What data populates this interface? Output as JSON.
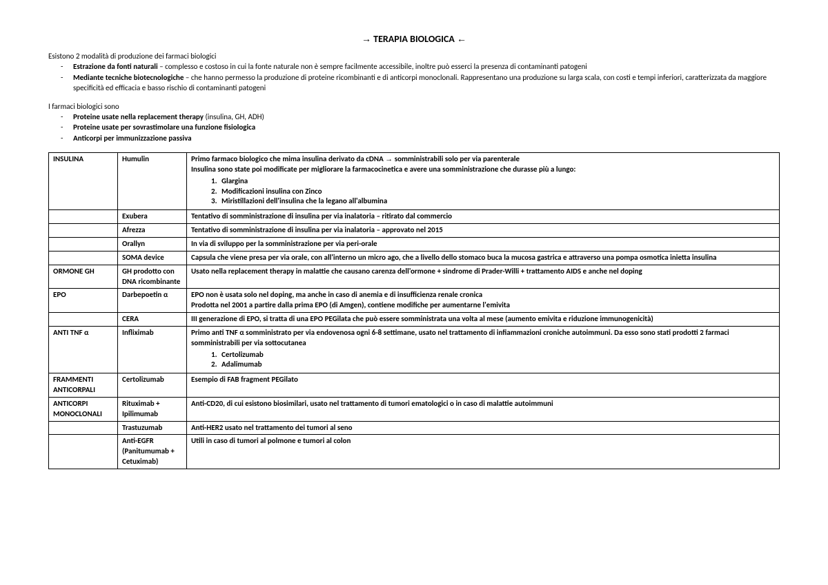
{
  "title": "TERAPIA BIOLOGICA",
  "intro1": "Esistono 2 modalità di produzione dei farmaci biologici",
  "bullets1": [
    {
      "bold": "Estrazione da fonti naturali",
      "rest": " – complesso e costoso in cui la fonte naturale non è sempre facilmente accessibile, inoltre può esserci la presenza di contaminanti patogeni"
    },
    {
      "bold": "Mediante tecniche biotecnologiche",
      "rest": " – che hanno permesso la produzione di proteine ricombinanti e di anticorpi monoclonali. Rappresentano una produzione su larga scala, con costi e tempi inferiori, caratterizzata da maggiore specificità ed efficacia e basso rischio di contaminanti patogeni"
    }
  ],
  "intro2": "I farmaci biologici sono",
  "bullets2": [
    {
      "bold": "Proteine usate nella replacement therapy",
      "rest": " (insulina, GH, ADH)"
    },
    {
      "bold": "Proteine usate per sovrastimolare una funzione fisiologica",
      "rest": ""
    },
    {
      "bold": "Anticorpi per immunizzazione passiva",
      "rest": ""
    }
  ],
  "rows": [
    {
      "cat": "INSULINA",
      "name": "Humulin",
      "desc_pre": "Primo farmaco biologico che mima insulina derivato da cDNA ",
      "desc_post": " somministrabili solo per via parenterale",
      "line2": "Insulina sono state poi modificate per migliorare la farmacocinetica e avere una somministrazione che durasse più a lungo:",
      "list": [
        "Glargina",
        "Modificazioni insulina con Zinco",
        "Miristillazioni dell'insulina che la legano all'albumina"
      ]
    },
    {
      "cat": "",
      "name": "Exubera",
      "desc": "Tentativo di somministrazione di insulina per via inalatoria – ritirato dal commercio"
    },
    {
      "cat": "",
      "name": "Afrezza",
      "desc": "Tentativo di somministrazione di insulina per via inalatoria – approvato nel 2015"
    },
    {
      "cat": "",
      "name": "Orallyn",
      "desc": "In via di sviluppo per la somministrazione per via peri-orale"
    },
    {
      "cat": "",
      "name": "SOMA device",
      "desc": "Capsula che viene presa per via orale, con all'interno un micro ago, che a livello dello stomaco buca la mucosa gastrica e attraverso una pompa osmotica inietta insulina"
    },
    {
      "cat": "ORMONE GH",
      "name": "GH prodotto con DNA ricombinante",
      "desc": "Usato nella replacement therapy in malattie che causano carenza dell'ormone + sindrome di Prader-Willi + trattamento AIDS e anche nel doping"
    },
    {
      "cat": "EPO",
      "name": "Darbepoetin α",
      "desc": "EPO non è usata solo nel doping, ma anche in caso di anemia e di insufficienza renale cronica",
      "line2": "Prodotta nel 2001 a partire dalla prima EPO (di Amgen), contiene modifiche per aumentarne l'emivita"
    },
    {
      "cat": "",
      "name": "CERA",
      "desc": "III generazione di EPO, si tratta di una EPO PEGilata che può essere somministrata una volta al mese (aumento emivita e riduzione immunogenicità)"
    },
    {
      "cat": "ANTI TNF α",
      "name": "Infliximab",
      "desc": "Primo anti TNF α somministrato per via endovenosa ogni 6-8 settimane, usato nel trattamento di infiammazioni croniche autoimmuni. Da esso sono stati prodotti 2 farmaci somministrabili per via sottocutanea",
      "list": [
        "Certolizumab",
        "Adalimumab"
      ]
    },
    {
      "cat": "FRAMMENTI ANTICORPALI",
      "name": "Certolizumab",
      "desc": "Esempio di FAB fragment PEGilato"
    },
    {
      "cat": "ANTICORPI MONOCLONALI",
      "name": "Rituximab + Ipilimumab",
      "desc": "Anti-CD20, di cui esistono biosimilari, usato nel trattamento di tumori ematologici o in caso di malattie autoimmuni"
    },
    {
      "cat": "",
      "name": "Trastuzumab",
      "desc": "Anti-HER2 usato nel trattamento dei tumori al seno"
    },
    {
      "cat": "",
      "name": "Anti-EGFR (Panitumumab + Cetuximab)",
      "desc": "Utili in caso di tumori al polmone e tumori al colon"
    }
  ]
}
